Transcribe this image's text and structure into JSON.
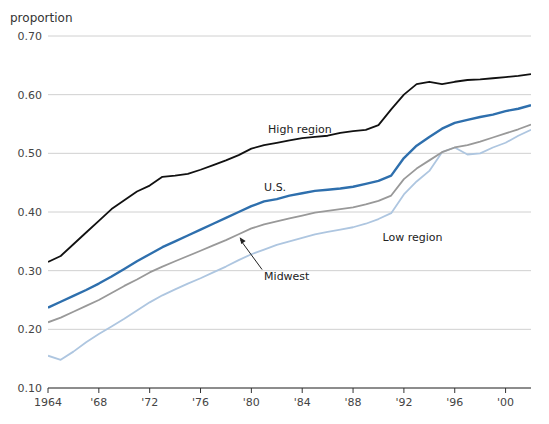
{
  "chart_data": {
    "type": "line",
    "y_label": "proportion",
    "x": [
      1964,
      1965,
      1966,
      1967,
      1968,
      1969,
      1970,
      1971,
      1972,
      1973,
      1974,
      1975,
      1976,
      1977,
      1978,
      1979,
      1980,
      1981,
      1982,
      1983,
      1984,
      1985,
      1986,
      1987,
      1988,
      1989,
      1990,
      1991,
      1992,
      1993,
      1994,
      1995,
      1996,
      1997,
      1998,
      1999,
      2000,
      2001,
      2002
    ],
    "series": [
      {
        "name": "High region",
        "color": "#111111",
        "values": [
          0.315,
          0.325,
          0.345,
          0.365,
          0.385,
          0.405,
          0.42,
          0.435,
          0.445,
          0.46,
          0.462,
          0.465,
          0.472,
          0.48,
          0.488,
          0.497,
          0.508,
          0.514,
          0.518,
          0.522,
          0.526,
          0.528,
          0.53,
          0.535,
          0.538,
          0.54,
          0.548,
          0.575,
          0.6,
          0.618,
          0.622,
          0.618,
          0.622,
          0.625,
          0.626,
          0.628,
          0.63,
          0.632,
          0.635
        ]
      },
      {
        "name": "U.S.",
        "color": "#2e6fad",
        "values": [
          0.237,
          0.247,
          0.257,
          0.267,
          0.278,
          0.29,
          0.303,
          0.316,
          0.328,
          0.34,
          0.35,
          0.36,
          0.37,
          0.38,
          0.39,
          0.4,
          0.41,
          0.418,
          0.422,
          0.428,
          0.432,
          0.436,
          0.438,
          0.44,
          0.443,
          0.448,
          0.453,
          0.462,
          0.492,
          0.513,
          0.528,
          0.542,
          0.552,
          0.557,
          0.562,
          0.566,
          0.572,
          0.576,
          0.582
        ]
      },
      {
        "name": "Midwest",
        "color": "#999999",
        "values": [
          0.212,
          0.22,
          0.23,
          0.24,
          0.25,
          0.262,
          0.274,
          0.285,
          0.297,
          0.307,
          0.316,
          0.325,
          0.334,
          0.343,
          0.352,
          0.362,
          0.372,
          0.379,
          0.384,
          0.389,
          0.394,
          0.399,
          0.402,
          0.405,
          0.408,
          0.413,
          0.419,
          0.428,
          0.456,
          0.474,
          0.488,
          0.502,
          0.51,
          0.514,
          0.52,
          0.527,
          0.534,
          0.541,
          0.549
        ]
      },
      {
        "name": "Low region",
        "color": "#aec6e0",
        "values": [
          0.155,
          0.148,
          0.162,
          0.178,
          0.192,
          0.205,
          0.218,
          0.232,
          0.246,
          0.258,
          0.268,
          0.278,
          0.287,
          0.297,
          0.307,
          0.318,
          0.328,
          0.336,
          0.344,
          0.35,
          0.356,
          0.362,
          0.366,
          0.37,
          0.374,
          0.38,
          0.388,
          0.398,
          0.43,
          0.452,
          0.47,
          0.502,
          0.51,
          0.498,
          0.5,
          0.51,
          0.518,
          0.53,
          0.54
        ]
      }
    ],
    "xlim": [
      1964,
      2002
    ],
    "ylim": [
      0.1,
      0.7
    ],
    "xticks": [
      1964,
      {
        "value": 1968,
        "label": "'68"
      },
      {
        "value": 1972,
        "label": "'72"
      },
      {
        "value": 1976,
        "label": "'76"
      },
      {
        "value": 1980,
        "label": "'80"
      },
      {
        "value": 1984,
        "label": "'84"
      },
      {
        "value": 1988,
        "label": "'88"
      },
      {
        "value": 1992,
        "label": "'92"
      },
      {
        "value": 1996,
        "label": "'96"
      },
      {
        "value": 2000,
        "label": "'00"
      }
    ],
    "yticks": [
      {
        "value": 0.1,
        "label": "0.10"
      },
      {
        "value": 0.2,
        "label": "0.20"
      },
      {
        "value": 0.3,
        "label": "0.30"
      },
      {
        "value": 0.4,
        "label": "0.40"
      },
      {
        "value": 0.5,
        "label": "0.50"
      },
      {
        "value": 0.6,
        "label": "0.60"
      },
      {
        "value": 0.7,
        "label": "0.70"
      }
    ],
    "grid": true
  }
}
